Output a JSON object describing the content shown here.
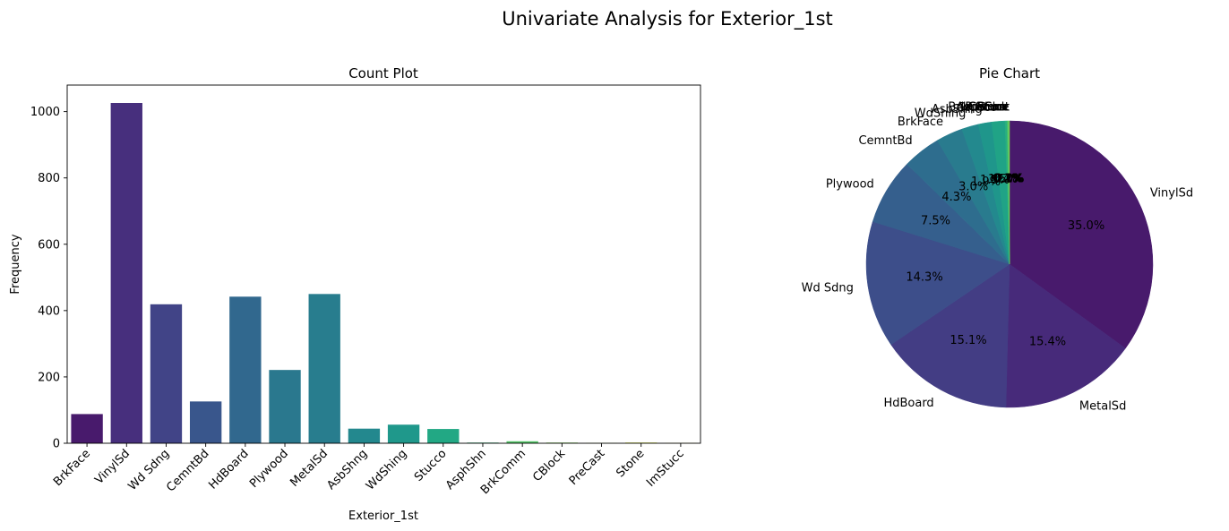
{
  "figure": {
    "title": "Univariate Analysis for Exterior_1st"
  },
  "chart_data": [
    {
      "type": "bar",
      "title": "Count Plot",
      "xlabel": "Exterior_1st",
      "ylabel": "Frequency",
      "ylim": [
        0,
        1080
      ],
      "yticks": [
        0,
        200,
        400,
        600,
        800,
        1000
      ],
      "grid": false,
      "categories": [
        "BrkFace",
        "VinylSd",
        "Wd Sdng",
        "CemntBd",
        "HdBoard",
        "Plywood",
        "MetalSd",
        "AsbShng",
        "WdShing",
        "Stucco",
        "AsphShn",
        "BrkComm",
        "CBlock",
        "PreCast",
        "Stone",
        "ImStucc"
      ],
      "values": [
        88,
        1026,
        419,
        126,
        442,
        221,
        450,
        44,
        56,
        43,
        2,
        6,
        2,
        1,
        2,
        1
      ],
      "colors": [
        "#481a6c",
        "#472f7d",
        "#414487",
        "#39568c",
        "#31688e",
        "#2a788e",
        "#287d8e",
        "#23888e",
        "#1f988b",
        "#22a884",
        "#35b779",
        "#54c568",
        "#7ad151",
        "#a5db36",
        "#d2e21b",
        "#fde725"
      ]
    },
    {
      "type": "pie",
      "title": "Pie Chart",
      "start_angle_deg": 90,
      "direction": "clockwise",
      "slices": [
        {
          "label": "VinylSd",
          "value": 35.0,
          "pct_label": "35.0%",
          "color": "#481a6c"
        },
        {
          "label": "MetalSd",
          "value": 15.4,
          "pct_label": "15.4%",
          "color": "#472a7a"
        },
        {
          "label": "HdBoard",
          "value": 15.1,
          "pct_label": "15.1%",
          "color": "#433d84"
        },
        {
          "label": "Wd Sdng",
          "value": 14.3,
          "pct_label": "14.3%",
          "color": "#3d4e8a"
        },
        {
          "label": "Plywood",
          "value": 7.5,
          "pct_label": "7.5%",
          "color": "#355f8d"
        },
        {
          "label": "CemntBd",
          "value": 4.3,
          "pct_label": "4.3%",
          "color": "#2e6d8e"
        },
        {
          "label": "BrkFace",
          "value": 3.0,
          "pct_label": "3.0%",
          "color": "#297b8e"
        },
        {
          "label": "WdShing",
          "value": 1.9,
          "pct_label": "1.9%",
          "color": "#23898e"
        },
        {
          "label": "AsbShng",
          "value": 1.5,
          "pct_label": "1.5%",
          "color": "#1f968b"
        },
        {
          "label": "Stucco",
          "value": 1.5,
          "pct_label": "1.5%",
          "color": "#20a386"
        },
        {
          "label": "BrkComm",
          "value": 0.2,
          "pct_label": "0.2%",
          "color": "#29af7f"
        },
        {
          "label": "AsphShn",
          "value": 0.1,
          "pct_label": "0.1%",
          "color": "#3dbc74"
        },
        {
          "label": "CBlock",
          "value": 0.1,
          "pct_label": "0.1%",
          "color": "#56c667"
        },
        {
          "label": "Stone",
          "value": 0.1,
          "pct_label": "0.1%",
          "color": "#75d054"
        },
        {
          "label": "ImStucc",
          "value": 0.0,
          "pct_label": "0.0%",
          "color": "#95d840"
        },
        {
          "label": "PreCast",
          "value": 0.0,
          "pct_label": "0.0%",
          "color": "#bade28"
        }
      ]
    }
  ]
}
